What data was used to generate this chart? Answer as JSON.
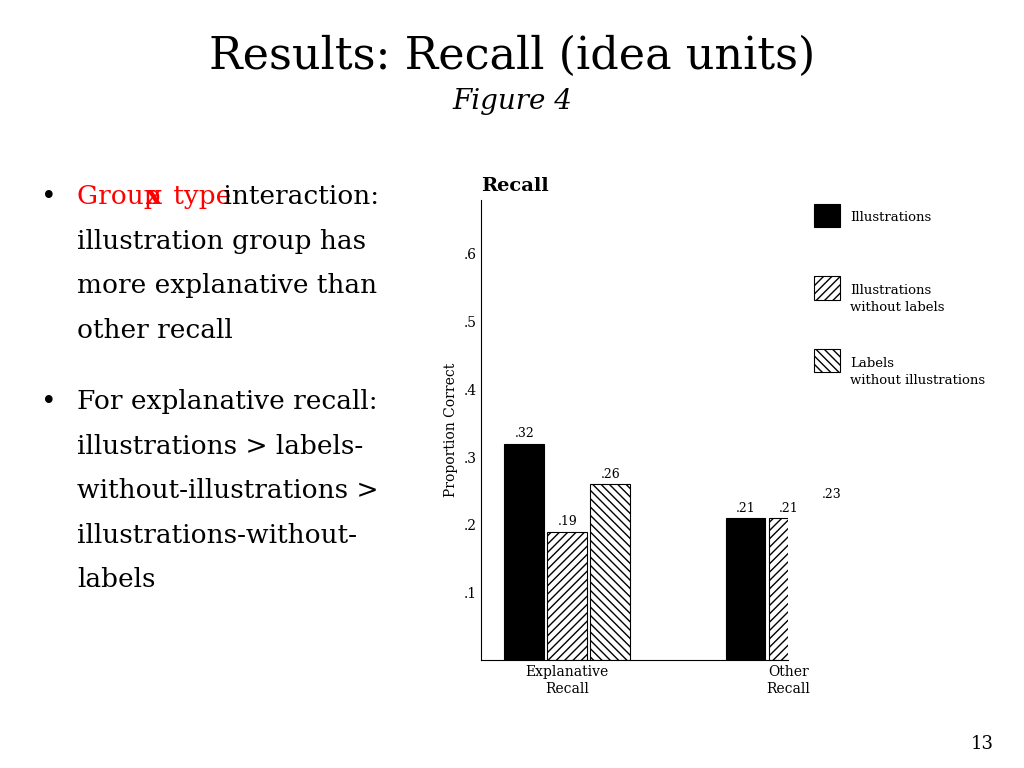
{
  "title": "Results: Recall (idea units)",
  "subtitle": "Figure 4",
  "title_fontsize": 32,
  "subtitle_fontsize": 20,
  "background_color": "#ffffff",
  "chart_title": "Recall",
  "ylabel": "Proportion Correct",
  "yticks": [
    0.1,
    0.2,
    0.3,
    0.4,
    0.5,
    0.6
  ],
  "ytick_labels": [
    ".1",
    ".2",
    ".3",
    ".4",
    ".5",
    ".6"
  ],
  "ylim": [
    0,
    0.68
  ],
  "groups": [
    "Explanative\nRecall",
    "Other\nRecall"
  ],
  "series": [
    "Illustrations",
    "Illustrations\nwithout labels",
    "Labels\nwithout illustrations"
  ],
  "values": [
    [
      0.32,
      0.19,
      0.26
    ],
    [
      0.21,
      0.21,
      0.23
    ]
  ],
  "bar_labels": [
    [
      ".32",
      ".19",
      ".26"
    ],
    [
      ".21",
      ".21",
      ".23"
    ]
  ],
  "bar_colors": [
    "#000000",
    "#ffffff",
    "#ffffff"
  ],
  "bar_hatches": [
    null,
    "////",
    "////"
  ],
  "hatch_angles": [
    null,
    "forward",
    "backward"
  ],
  "page_number": "13"
}
